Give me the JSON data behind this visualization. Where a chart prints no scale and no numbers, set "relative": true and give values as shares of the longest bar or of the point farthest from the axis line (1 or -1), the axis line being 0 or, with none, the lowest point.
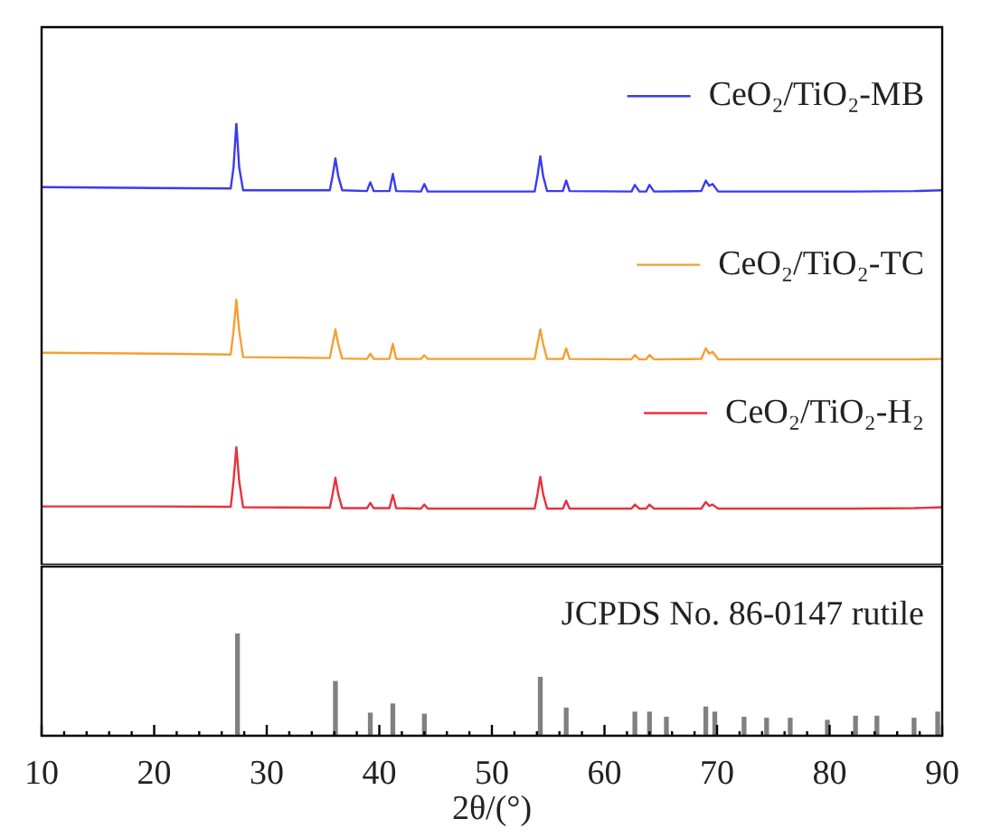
{
  "chart_data": [
    {
      "type": "line",
      "relative": true,
      "legend": "top right",
      "marker": "none",
      "line_style": "solid",
      "xlim": [
        10,
        90
      ],
      "tick_labels": false,
      "x": [
        10,
        20,
        26.8,
        27.05,
        27.3,
        27.55,
        27.9,
        35.6,
        35.85,
        36.1,
        36.35,
        36.7,
        38.9,
        39.2,
        39.5,
        40.9,
        41.2,
        41.5,
        43.7,
        44.0,
        44.3,
        53.8,
        54.05,
        54.3,
        54.55,
        54.9,
        56.3,
        56.6,
        56.9,
        62.4,
        62.7,
        63.1,
        63.7,
        64.0,
        64.4,
        68.6,
        69.0,
        69.3,
        69.6,
        70.1,
        75,
        82.3,
        87.5,
        90
      ],
      "series": [
        {
          "name": "CeO₂/TiO₂-MB",
          "color": "#3b3bf0",
          "values": [
            0.855,
            0.853,
            0.852,
            0.9,
            1.0,
            0.9,
            0.848,
            0.848,
            0.88,
            0.92,
            0.88,
            0.848,
            0.846,
            0.866,
            0.846,
            0.846,
            0.885,
            0.846,
            0.845,
            0.862,
            0.845,
            0.845,
            0.88,
            0.925,
            0.88,
            0.846,
            0.846,
            0.87,
            0.846,
            0.845,
            0.86,
            0.845,
            0.845,
            0.86,
            0.845,
            0.846,
            0.87,
            0.858,
            0.862,
            0.845,
            0.845,
            0.845,
            0.846,
            0.848
          ]
        },
        {
          "name": "CeO₂/TiO₂-TC",
          "color": "#f4a033",
          "values": [
            0.48,
            0.478,
            0.476,
            0.53,
            0.6,
            0.53,
            0.47,
            0.468,
            0.5,
            0.533,
            0.5,
            0.467,
            0.466,
            0.478,
            0.466,
            0.466,
            0.5,
            0.466,
            0.466,
            0.474,
            0.466,
            0.466,
            0.5,
            0.533,
            0.5,
            0.466,
            0.466,
            0.49,
            0.466,
            0.465,
            0.475,
            0.465,
            0.465,
            0.475,
            0.465,
            0.466,
            0.49,
            0.478,
            0.482,
            0.465,
            0.465,
            0.465,
            0.465,
            0.466
          ]
        },
        {
          "name": "CeO₂/TiO₂-H₂",
          "color": "#e8323e",
          "values": [
            0.132,
            0.132,
            0.131,
            0.19,
            0.266,
            0.19,
            0.13,
            0.129,
            0.16,
            0.197,
            0.16,
            0.128,
            0.128,
            0.14,
            0.128,
            0.128,
            0.158,
            0.128,
            0.127,
            0.136,
            0.127,
            0.127,
            0.16,
            0.199,
            0.16,
            0.127,
            0.127,
            0.145,
            0.127,
            0.127,
            0.136,
            0.127,
            0.127,
            0.136,
            0.127,
            0.127,
            0.142,
            0.133,
            0.136,
            0.127,
            0.127,
            0.127,
            0.128,
            0.13
          ]
        }
      ]
    },
    {
      "type": "bar",
      "relative": true,
      "xlim": [
        10,
        90
      ],
      "tick_labels": "x",
      "xlabel": "2θ/(°)",
      "xticks": [
        10,
        {
          "value": 12,
          "label": null
        },
        {
          "value": 14,
          "label": null
        },
        {
          "value": 16,
          "label": null
        },
        {
          "value": 18,
          "label": null
        },
        20,
        {
          "value": 22,
          "label": null
        },
        {
          "value": 24,
          "label": null
        },
        {
          "value": 26,
          "label": null
        },
        {
          "value": 28,
          "label": null
        },
        30,
        {
          "value": 32,
          "label": null
        },
        {
          "value": 34,
          "label": null
        },
        {
          "value": 36,
          "label": null
        },
        {
          "value": 38,
          "label": null
        },
        40,
        {
          "value": 42,
          "label": null
        },
        {
          "value": 44,
          "label": null
        },
        {
          "value": 46,
          "label": null
        },
        {
          "value": 48,
          "label": null
        },
        50,
        {
          "value": 52,
          "label": null
        },
        {
          "value": 54,
          "label": null
        },
        {
          "value": 56,
          "label": null
        },
        {
          "value": 58,
          "label": null
        },
        60,
        {
          "value": 62,
          "label": null
        },
        {
          "value": 64,
          "label": null
        },
        {
          "value": 66,
          "label": null
        },
        {
          "value": 68,
          "label": null
        },
        70,
        {
          "value": 72,
          "label": null
        },
        {
          "value": 74,
          "label": null
        },
        {
          "value": 76,
          "label": null
        },
        {
          "value": 78,
          "label": null
        },
        80,
        {
          "value": 82,
          "label": null
        },
        {
          "value": 84,
          "label": null
        },
        {
          "value": 86,
          "label": null
        },
        {
          "value": 88,
          "label": null
        },
        90
      ],
      "x": [
        27.4,
        36.1,
        39.2,
        41.2,
        44.0,
        54.3,
        56.6,
        62.7,
        64.0,
        65.5,
        69.0,
        69.8,
        72.4,
        74.4,
        76.5,
        79.8,
        82.3,
        84.2,
        87.5,
        89.6
      ],
      "series": [
        {
          "name": "JCPDS No. 86-0147 rutile",
          "color": "#808080",
          "values": [
            1.0,
            0.53,
            0.22,
            0.31,
            0.21,
            0.57,
            0.27,
            0.23,
            0.23,
            0.18,
            0.28,
            0.23,
            0.18,
            0.17,
            0.17,
            0.15,
            0.19,
            0.19,
            0.17,
            0.23
          ]
        }
      ]
    }
  ]
}
